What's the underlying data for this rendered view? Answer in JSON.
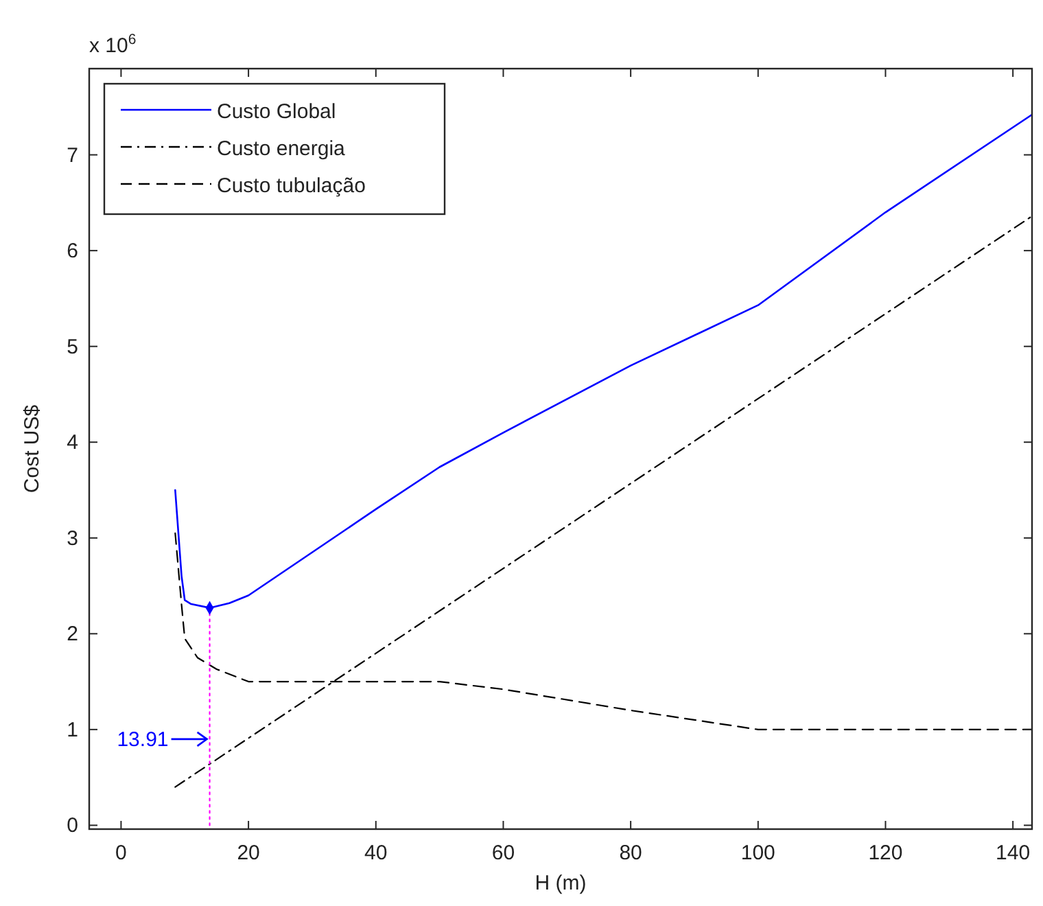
{
  "chart_data": {
    "type": "line",
    "xlabel": "H (m)",
    "ylabel": "Cost US$",
    "annotations": [
      "x 10$^{6}$",
      {
        "text": "13.91",
        "x": 13.91,
        "y": 0.9
      }
    ],
    "xlim": [
      -5,
      143
    ],
    "xticks": [
      0,
      20,
      40,
      60,
      80,
      100,
      120,
      140
    ],
    "ylim": [
      -0.04,
      7.9
    ],
    "yticks": [
      0,
      1,
      2,
      3,
      4,
      5,
      6,
      7
    ],
    "grid": false,
    "legend": "top left",
    "series": [
      {
        "name": "Custo Global",
        "color": "#0000ff",
        "line_style": "solid",
        "x": [
          8.5,
          9.5,
          10,
          11,
          13.91,
          17,
          20,
          30,
          40,
          50,
          60,
          80,
          100,
          120,
          143
        ],
        "values": [
          3.5,
          2.6,
          2.35,
          2.31,
          2.27,
          2.32,
          2.4,
          2.85,
          3.3,
          3.74,
          4.1,
          4.8,
          5.43,
          6.4,
          7.42
        ]
      },
      {
        "name": "Custo energia",
        "color": "#000000",
        "line_style": "dashdot",
        "x": [
          8.5,
          143
        ],
        "values": [
          0.4,
          6.36
        ]
      },
      {
        "name": "Custo tubulação",
        "color": "#000000",
        "line_style": "dashed",
        "x": [
          8.5,
          9.5,
          10,
          12,
          15,
          20,
          50,
          60,
          80,
          100,
          143
        ],
        "values": [
          3.05,
          2.3,
          1.95,
          1.75,
          1.63,
          1.5,
          1.5,
          1.42,
          1.2,
          1.0,
          1.0
        ]
      },
      {
        "type": "line",
        "color": "#ff00ff",
        "line_style": "dotted",
        "x": [
          13.91,
          13.91
        ],
        "values": [
          0,
          2.27
        ]
      },
      {
        "type": "scatter",
        "color": "#0000ff",
        "marker": "diamond",
        "x": [
          13.91
        ],
        "values": [
          2.27
        ]
      }
    ]
  }
}
